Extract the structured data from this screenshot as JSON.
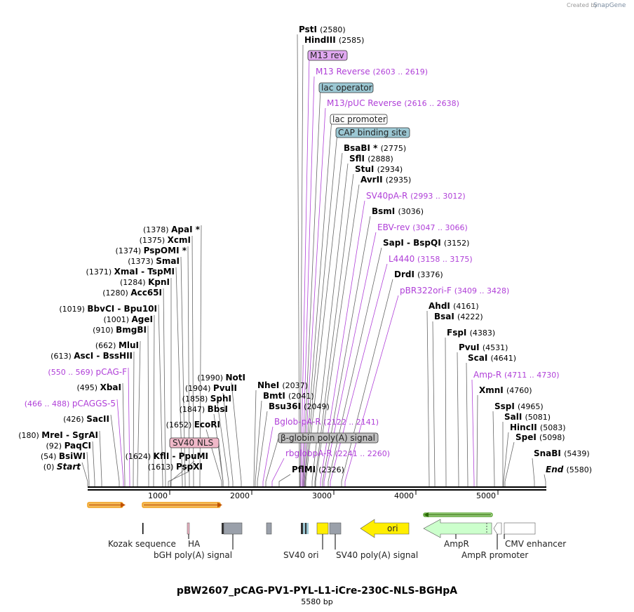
{
  "credit": {
    "prefix": "Created by",
    "brand": "SnapGene"
  },
  "title": "pBW2607_pCAG-PV1-PYL-L1-iCre-230C-NLS-BGHpA",
  "length_label": "5580 bp",
  "ruler": {
    "ticks": [
      "1000",
      "2000",
      "3000",
      "4000",
      "5000"
    ]
  },
  "left_sites": [
    {
      "name": "ApaI *",
      "pos": "(1378)"
    },
    {
      "name": "XcmI",
      "pos": "(1375)"
    },
    {
      "name": "PspOMI *",
      "pos": "(1374)"
    },
    {
      "name": "SmaI",
      "pos": "(1373)"
    },
    {
      "name": "XmaI  -  TspMI",
      "pos": "(1371)"
    },
    {
      "name": "KpnI",
      "pos": "(1284)"
    },
    {
      "name": "Acc65I",
      "pos": "(1280)"
    },
    {
      "name": "BbvCI  -  Bpu10I",
      "pos": "(1019)"
    },
    {
      "name": "AgeI",
      "pos": "(1001)"
    },
    {
      "name": "BmgBI",
      "pos": "(910)"
    },
    {
      "name": "MluI",
      "pos": "(662)"
    },
    {
      "name": "AscI  -  BssHII",
      "pos": "(613)"
    },
    {
      "name": "pCAG-F",
      "pos": "(550 .. 569)",
      "primer": true
    },
    {
      "name": "XbaI",
      "pos": "(495)"
    },
    {
      "name": "pCAGGS-5",
      "pos": "(466 .. 488)",
      "primer": true
    },
    {
      "name": "SacII",
      "pos": "(426)"
    },
    {
      "name": "MreI  -  SgrAI",
      "pos": "(180)"
    },
    {
      "name": "PaqCI",
      "pos": "(92)"
    },
    {
      "name": "BsiWI",
      "pos": "(54)"
    },
    {
      "name": "Start",
      "pos": "(0)",
      "italic": true
    }
  ],
  "mid_left_sites": [
    {
      "name": "NotI",
      "pos": "(1990)"
    },
    {
      "name": "PvuII",
      "pos": "(1904)"
    },
    {
      "name": "SphI",
      "pos": "(1858)"
    },
    {
      "name": "BbsI",
      "pos": "(1847)"
    },
    {
      "name": "EcoRI",
      "pos": "(1652)"
    },
    {
      "name": "KflI  -  PpuMI",
      "pos": "(1624)"
    },
    {
      "name": "PspXI",
      "pos": "(1613)"
    }
  ],
  "sv40_nls_label": "SV40 NLS",
  "mid_sites": [
    {
      "name": "NheI",
      "pos": "(2037)"
    },
    {
      "name": "BmtI",
      "pos": "(2041)"
    },
    {
      "name": "Bsu36I",
      "pos": "(2049)"
    },
    {
      "name": "Bglob-pA-R",
      "pos": "(2122 .. 2141)",
      "primer": true
    },
    {
      "name": "rbglobpA-R",
      "pos": "(2241 .. 2260)",
      "primer": true
    },
    {
      "name": "PflMI",
      "pos": "(2326)"
    }
  ],
  "globin_label": "β-globin poly(A) signal",
  "top_sites": [
    {
      "name": "PstI",
      "pos": "(2580)"
    },
    {
      "name": "HindIII",
      "pos": "(2585)"
    },
    {
      "name": "M13 Reverse",
      "pos": "(2603 .. 2619)",
      "primer": true
    },
    {
      "name": "M13/pUC Reverse",
      "pos": "(2616 .. 2638)",
      "primer": true
    },
    {
      "name": "BsaBI *",
      "pos": "(2775)"
    },
    {
      "name": "SflI",
      "pos": "(2888)"
    },
    {
      "name": "StuI",
      "pos": "(2934)"
    },
    {
      "name": "AvrII",
      "pos": "(2935)"
    },
    {
      "name": "SV40pA-R",
      "pos": "(2993 .. 3012)",
      "primer": true
    },
    {
      "name": "BsmI",
      "pos": "(3036)"
    },
    {
      "name": "EBV-rev",
      "pos": "(3047 .. 3066)",
      "primer": true
    },
    {
      "name": "SapI  -  BspQI",
      "pos": "(3152)"
    },
    {
      "name": "L4440",
      "pos": "(3158 .. 3175)",
      "primer": true
    },
    {
      "name": "DrdI",
      "pos": "(3376)"
    },
    {
      "name": "pBR322ori-F",
      "pos": "(3409 .. 3428)",
      "primer": true
    }
  ],
  "top_features": [
    "M13 rev",
    "lac operator",
    "lac promoter",
    "CAP binding site"
  ],
  "right_sites": [
    {
      "name": "AhdI",
      "pos": "(4161)"
    },
    {
      "name": "BsaI",
      "pos": "(4222)"
    },
    {
      "name": "FspI",
      "pos": "(4383)"
    },
    {
      "name": "PvuI",
      "pos": "(4531)"
    },
    {
      "name": "ScaI",
      "pos": "(4641)"
    },
    {
      "name": "Amp-R",
      "pos": "(4711 .. 4730)",
      "primer": true
    },
    {
      "name": "XmnI",
      "pos": "(4760)"
    },
    {
      "name": "SspI",
      "pos": "(4965)"
    },
    {
      "name": "SalI",
      "pos": "(5081)"
    },
    {
      "name": "HincII",
      "pos": "(5083)"
    },
    {
      "name": "SpeI",
      "pos": "(5098)"
    },
    {
      "name": "SnaBI",
      "pos": "(5439)"
    },
    {
      "name": "End",
      "pos": "(5580)",
      "italic": true
    }
  ],
  "feature_labels": {
    "kozak": "Kozak sequence",
    "ha": "HA",
    "bgh": "bGH poly(A) signal",
    "sv40ori": "SV40 ori",
    "sv40pa": "SV40 poly(A) signal",
    "ori": "ori",
    "ampr": "AmpR",
    "ampr_promoter": "AmpR promoter",
    "cmv": "CMV enhancer"
  },
  "colors": {
    "primer": "#b040d8",
    "orange": "#f0a020",
    "green": "#4a9a20",
    "ori_yellow": "#ffee00",
    "ampr_green": "#ccffcc",
    "gray_box": "#9aa0aa",
    "lac_blue": "#9cc8d4",
    "m13_purple": "#e0a8f0",
    "nls_pink": "#f0b8c8",
    "globin_gray": "#c0c0c0"
  }
}
